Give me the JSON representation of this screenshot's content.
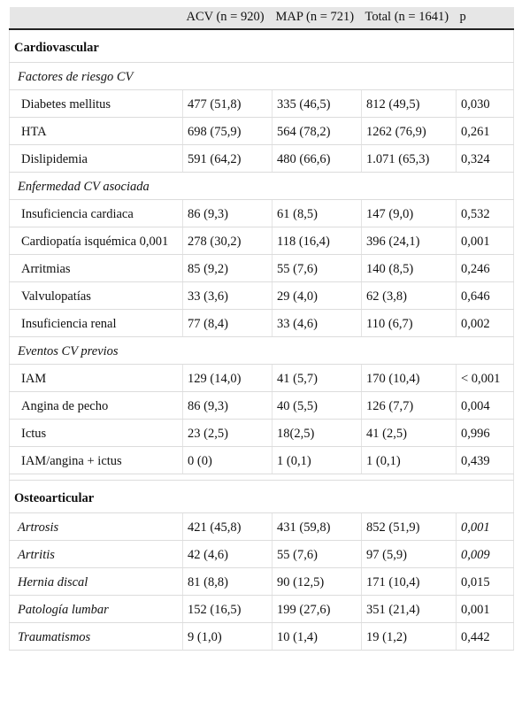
{
  "header": {
    "col0": "",
    "col1": "ACV (n = 920)",
    "col2": "MAP (n = 721)",
    "col3": "Total (n = 1641)",
    "col4": "p"
  },
  "sections": {
    "cardio": "Cardiovascular",
    "osteo": "Osteoarticular"
  },
  "subheads": {
    "riesgo": "Factores de riesgo CV",
    "enfermedad": "Enfermedad CV asociada",
    "eventos": "Eventos CV previos"
  },
  "rows": {
    "diabetes": [
      "Diabetes mellitus",
      "477 (51,8)",
      "335 (46,5)",
      "812 (49,5)",
      "0,030"
    ],
    "hta": [
      "HTA",
      "698 (75,9)",
      "564 (78,2)",
      "1262 (76,9)",
      "0,261"
    ],
    "dislipidemia": [
      "Dislipidemia",
      "591 (64,2)",
      "480 (66,6)",
      "1.071 (65,3)",
      "0,324"
    ],
    "insuf_cardiaca": [
      "Insuficiencia cardiaca",
      "86 (9,3)",
      "61 (8,5)",
      "147 (9,0)",
      "0,532"
    ],
    "cardiopatia": [
      "Cardiopatía isquémica 0,001",
      "278 (30,2)",
      "118 (16,4)",
      "396 (24,1)",
      "0,001"
    ],
    "arritmias": [
      "Arritmias",
      "85 (9,2)",
      "55 (7,6)",
      "140 (8,5)",
      "0,246"
    ],
    "valvulopatias": [
      "Valvulopatías",
      "33 (3,6)",
      "29 (4,0)",
      "62 (3,8)",
      "0,646"
    ],
    "insuf_renal": [
      "Insuficiencia renal",
      "77 (8,4)",
      "33 (4,6)",
      "110 (6,7)",
      "0,002"
    ],
    "iam": [
      "IAM",
      "129 (14,0)",
      "41 (5,7)",
      "170 (10,4)",
      "< 0,001"
    ],
    "angina": [
      "Angina de pecho",
      "86 (9,3)",
      "40 (5,5)",
      "126 (7,7)",
      "0,004"
    ],
    "ictus": [
      "Ictus",
      "23 (2,5)",
      "18(2,5)",
      "41 (2,5)",
      "0,996"
    ],
    "iam_angina_ictus": [
      "IAM/angina + ictus",
      "0 (0)",
      "1 (0,1)",
      "1 (0,1)",
      "0,439"
    ],
    "artrosis": [
      "Artrosis",
      "421 (45,8)",
      "431 (59,8)",
      "852 (51,9)",
      "0,001"
    ],
    "artritis": [
      "Artritis",
      "42 (4,6)",
      "55 (7,6)",
      "97 (5,9)",
      "0,009"
    ],
    "hernia": [
      "Hernia discal",
      "81 (8,8)",
      "90 (12,5)",
      "171 (10,4)",
      "0,015"
    ],
    "lumbar": [
      "Patología lumbar",
      "152 (16,5)",
      "199 (27,6)",
      "351 (21,4)",
      "0,001"
    ],
    "traumatismos": [
      "Traumatismos",
      "9 (1,0)",
      "10 (1,4)",
      "19 (1,2)",
      "0,442"
    ]
  }
}
